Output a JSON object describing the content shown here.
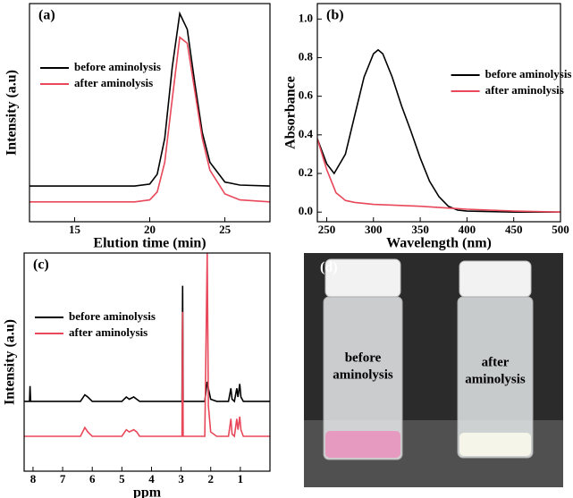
{
  "chart_data": [
    {
      "type": "line",
      "title": "(a)",
      "x_label": "Elution time (min)",
      "y_label": "Intensity (a.u)",
      "xlim": [
        12,
        28
      ],
      "xticks": [
        15,
        20,
        25
      ],
      "ylim": [
        0,
        1.1
      ],
      "legend": "upper left",
      "series": [
        {
          "name": "before aminolysis",
          "color": "#000000",
          "x": [
            12,
            14,
            16,
            18,
            19,
            20,
            20.5,
            21,
            21.5,
            22,
            22.5,
            23,
            23.5,
            24,
            25,
            26,
            28
          ],
          "values": [
            0.18,
            0.18,
            0.18,
            0.18,
            0.18,
            0.19,
            0.24,
            0.42,
            0.78,
            1.05,
            0.97,
            0.7,
            0.45,
            0.3,
            0.2,
            0.185,
            0.18
          ]
        },
        {
          "name": "after aminolysis",
          "color": "#e8485a",
          "x": [
            12,
            14,
            16,
            18,
            19,
            20,
            20.5,
            21,
            21.5,
            22,
            22.5,
            23,
            23.5,
            24,
            25,
            26,
            28
          ],
          "values": [
            0.1,
            0.1,
            0.1,
            0.1,
            0.1,
            0.11,
            0.15,
            0.3,
            0.62,
            0.93,
            0.9,
            0.66,
            0.42,
            0.26,
            0.14,
            0.11,
            0.1
          ]
        }
      ]
    },
    {
      "type": "line",
      "title": "(b)",
      "x_label": "Wavelength (nm)",
      "y_label": "Absorbance",
      "xlim": [
        240,
        500
      ],
      "xticks": [
        250,
        300,
        350,
        400,
        450,
        500
      ],
      "ylim": [
        -0.05,
        1.08
      ],
      "yticks": [
        {
          "value": 0,
          "label": "0.0"
        },
        0.2,
        0.4,
        0.6,
        0.8,
        {
          "value": 1,
          "label": "1.0"
        }
      ],
      "legend": "upper right",
      "series": [
        {
          "name": "before aminolysis",
          "color": "#000000",
          "x": [
            240,
            250,
            258,
            270,
            280,
            290,
            300,
            305,
            310,
            320,
            330,
            340,
            350,
            360,
            370,
            380,
            390,
            400,
            450,
            500
          ],
          "values": [
            0.38,
            0.25,
            0.2,
            0.3,
            0.5,
            0.7,
            0.82,
            0.84,
            0.82,
            0.7,
            0.55,
            0.42,
            0.28,
            0.16,
            0.08,
            0.03,
            0.01,
            0.005,
            0,
            0
          ]
        },
        {
          "name": "after aminolysis",
          "color": "#e8485a",
          "x": [
            240,
            250,
            260,
            270,
            280,
            300,
            350,
            400,
            450,
            500
          ],
          "values": [
            0.38,
            0.22,
            0.1,
            0.06,
            0.05,
            0.04,
            0.03,
            0.015,
            0.005,
            0
          ]
        }
      ]
    },
    {
      "type": "line",
      "title": "(c)",
      "x_label": "ppm",
      "y_label": "Intensity (a.u)",
      "xlim": [
        8.3,
        0
      ],
      "xticks": [
        8,
        7,
        6,
        5,
        4,
        3,
        2,
        1
      ],
      "ylim": [
        0,
        1
      ],
      "legend": "upper left",
      "series": [
        {
          "name": "before aminolysis",
          "color": "#000000",
          "x": [
            8.3,
            8.12,
            8.1,
            8.08,
            7.5,
            6.4,
            6.25,
            6.15,
            6.0,
            5.0,
            4.85,
            4.75,
            4.6,
            4.5,
            4.4,
            3.5,
            2.97,
            2.95,
            2.93,
            2.2,
            2.12,
            2.08,
            2.0,
            1.8,
            1.4,
            1.32,
            1.28,
            1.2,
            1.12,
            1.08,
            1.02,
            0.98,
            0.9,
            0.6,
            0.0
          ],
          "values": [
            0.32,
            0.32,
            0.39,
            0.32,
            0.32,
            0.32,
            0.35,
            0.34,
            0.32,
            0.32,
            0.34,
            0.33,
            0.34,
            0.33,
            0.32,
            0.32,
            0.32,
            0.85,
            0.32,
            0.32,
            0.41,
            0.38,
            0.33,
            0.32,
            0.32,
            0.38,
            0.33,
            0.32,
            0.38,
            0.34,
            0.4,
            0.34,
            0.32,
            0.32,
            0.32
          ]
        },
        {
          "name": "after aminolysis",
          "color": "#e8485a",
          "x": [
            8.3,
            8.12,
            8.1,
            8.08,
            7.5,
            6.4,
            6.25,
            6.15,
            6.0,
            5.0,
            4.85,
            4.75,
            4.6,
            4.5,
            4.4,
            3.5,
            2.97,
            2.95,
            2.93,
            2.2,
            2.12,
            2.08,
            2.0,
            1.8,
            1.4,
            1.32,
            1.28,
            1.2,
            1.12,
            1.08,
            1.02,
            0.98,
            0.9,
            0.6,
            0.0
          ],
          "values": [
            0.16,
            0.16,
            0.16,
            0.16,
            0.16,
            0.16,
            0.2,
            0.18,
            0.16,
            0.16,
            0.19,
            0.18,
            0.19,
            0.18,
            0.16,
            0.16,
            0.16,
            0.73,
            0.16,
            0.16,
            1.0,
            0.3,
            0.18,
            0.16,
            0.16,
            0.24,
            0.17,
            0.16,
            0.24,
            0.19,
            0.25,
            0.19,
            0.16,
            0.16,
            0.16
          ]
        }
      ]
    }
  ],
  "photo": {
    "label": "(d)",
    "vials": [
      [
        "before",
        "aminolysis"
      ],
      [
        "after",
        "aminolysis"
      ]
    ]
  }
}
